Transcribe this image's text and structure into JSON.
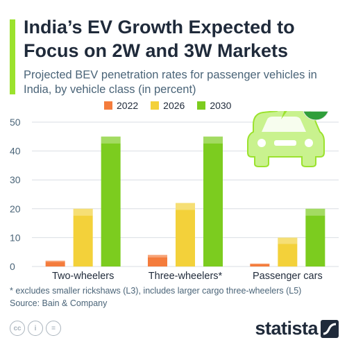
{
  "header": {
    "title": "India’s EV Growth Expected to Focus on 2W and 3W Markets",
    "subtitle": "Projected BEV penetration rates for passenger vehicles in India, by vehicle class (in percent)"
  },
  "colors": {
    "accent": "#9be22d",
    "series_2022": "#f47c3c",
    "series_2026": "#f3d13a",
    "series_2030": "#7ccc1f",
    "grid": "#d9dee3",
    "axis_text": "#4a6478"
  },
  "chart_data": {
    "type": "bar",
    "categories": [
      "Two-wheelers",
      "Three-wheelers*",
      "Passenger cars"
    ],
    "series": [
      {
        "name": "2022",
        "values": [
          2,
          4,
          1
        ]
      },
      {
        "name": "2026",
        "values": [
          20,
          22,
          10
        ]
      },
      {
        "name": "2030",
        "values": [
          45,
          45,
          20
        ]
      }
    ],
    "ylim": [
      0,
      50
    ],
    "yticks": [
      0,
      10,
      20,
      30,
      40,
      50
    ],
    "grid": true,
    "legend_position": "top-center"
  },
  "footer": {
    "footnote": "* excludes smaller rickshaws (L3), includes larger cargo three-wheelers (L5)",
    "source": "Source: Bain & Company",
    "license_icons": [
      "cc-icon",
      "attribution-icon",
      "no-derivatives-icon"
    ],
    "license_glyphs": [
      "cc",
      "i",
      "="
    ],
    "brand": "statista"
  },
  "illustration": {
    "icons": [
      "electric-car-icon",
      "india-flag-icon"
    ]
  }
}
